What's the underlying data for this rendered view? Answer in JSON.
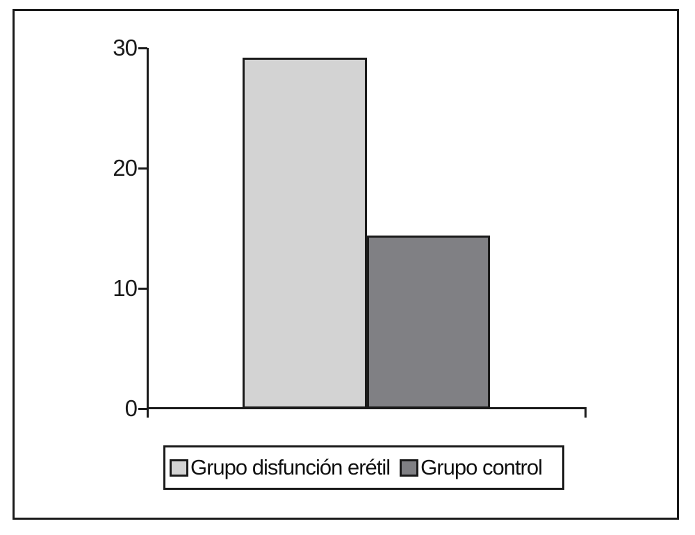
{
  "figure": {
    "background": "#ffffff",
    "frame_color": "#1a1a1a"
  },
  "chart_data": {
    "type": "bar",
    "categories": [
      "Grupo disfunción erétil",
      "Grupo control"
    ],
    "values": [
      29.2,
      14.4
    ],
    "series_colors": [
      "#d3d3d3",
      "#808084"
    ],
    "bar_border_color": "#1a1a1a",
    "title": "",
    "xlabel": "",
    "ylabel": "",
    "ylim": [
      0,
      30
    ],
    "yticks": [
      30,
      20,
      10,
      0
    ],
    "grid": false,
    "legend_position": "bottom-box"
  },
  "legend": {
    "items": [
      {
        "label": "Grupo disfunción erétil",
        "color": "#d3d3d3"
      },
      {
        "label": "Grupo control",
        "color": "#808084"
      }
    ]
  }
}
